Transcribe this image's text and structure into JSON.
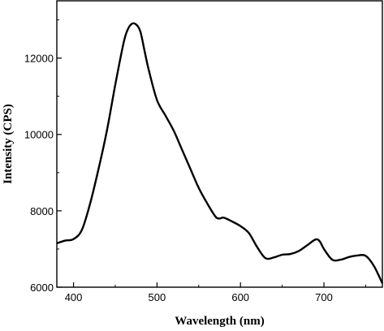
{
  "chart_data": {
    "type": "line",
    "xlabel": "Wavelength (nm)",
    "ylabel": "Intensity (CPS)",
    "xlim": [
      380,
      770
    ],
    "ylim": [
      6000,
      13500
    ],
    "xticks": [
      400,
      500,
      600,
      700
    ],
    "yticks": [
      6000,
      8000,
      10000,
      12000
    ],
    "grid": false,
    "series": [
      {
        "values_x": [
          380,
          390,
          400,
          410,
          420,
          430,
          440,
          450,
          460,
          465,
          470,
          475,
          480,
          485,
          490,
          500,
          510,
          520,
          530,
          540,
          550,
          560,
          570,
          575,
          580,
          590,
          600,
          610,
          620,
          630,
          640,
          650,
          660,
          670,
          680,
          690,
          695,
          700,
          710,
          720,
          730,
          740,
          750,
          760,
          770
        ],
        "values_y": [
          7150,
          7220,
          7260,
          7500,
          8200,
          9100,
          10100,
          11300,
          12400,
          12750,
          12900,
          12880,
          12700,
          12200,
          11700,
          10900,
          10500,
          10100,
          9600,
          9100,
          8600,
          8200,
          7850,
          7800,
          7820,
          7720,
          7600,
          7420,
          7050,
          6760,
          6780,
          6850,
          6870,
          6950,
          7100,
          7250,
          7200,
          7000,
          6720,
          6720,
          6790,
          6830,
          6820,
          6550,
          6100
        ]
      }
    ]
  },
  "colors": {
    "line": "#000000",
    "axis": "#000000",
    "background": "#ffffff"
  }
}
